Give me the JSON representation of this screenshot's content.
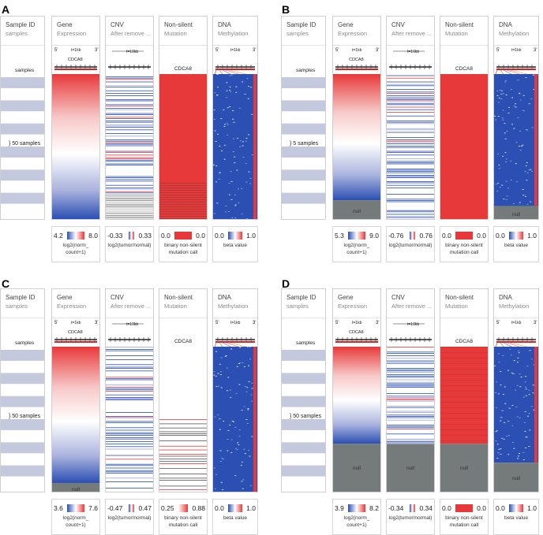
{
  "figure": {
    "panels": [
      {
        "id": "A",
        "columns": {
          "sample": {
            "title": "Sample ID",
            "subtitle": "samples",
            "samples_label": "samples",
            "bracket_label": "50 samples"
          },
          "gene": {
            "title": "Gene",
            "subtitle": "Expression",
            "gene_name": "CDCA8",
            "scale_label": "t=1kb",
            "five_prime": "5'",
            "three_prime": "3'"
          },
          "cnv": {
            "title": "CNV",
            "subtitle": "After remove ...",
            "scale_label": "t=10kb"
          },
          "mutation": {
            "title": "Non-silent",
            "subtitle": "Mutation",
            "gene_name": "CDCA8"
          },
          "methylation": {
            "title": "DNA",
            "subtitle": "Methylation",
            "scale_label": "t=1kb",
            "five_prime": "5'",
            "three_prime": "3'"
          }
        },
        "null_fraction": {
          "gene": 0,
          "cnv": 0,
          "mutation": 0,
          "methylation": 0
        },
        "null_label": "",
        "mutation_mode": "red",
        "legend": [
          {
            "lo": "4.2",
            "hi": "8.0",
            "line1": "log2(norm_",
            "line2": "count+1)",
            "type": "grad"
          },
          {
            "lo": "-0.33",
            "hi": "0.33",
            "line1": "log2(tumor/normal)",
            "line2": "",
            "type": "grad"
          },
          {
            "lo": "0.0",
            "hi": "0.0",
            "line1": "binary non-silent",
            "line2": "mutation call",
            "type": "solid"
          },
          {
            "lo": "0.0",
            "hi": "1.0",
            "line1": "beta value",
            "line2": "",
            "type": "grad"
          }
        ]
      },
      {
        "id": "B",
        "columns": {
          "sample": {
            "title": "Sample ID",
            "subtitle": "samples",
            "samples_label": "samples",
            "bracket_label": "5 samples"
          },
          "gene": {
            "title": "Gene",
            "subtitle": "Expression",
            "gene_name": "CDCA8",
            "scale_label": "t=1kb",
            "five_prime": "5'",
            "three_prime": "3'"
          },
          "cnv": {
            "title": "CNV",
            "subtitle": "After remove ...",
            "scale_label": "t=10kb"
          },
          "mutation": {
            "title": "Non-silent",
            "subtitle": "Mutation",
            "gene_name": "CDCA8"
          },
          "methylation": {
            "title": "DNA",
            "subtitle": "Methylation",
            "scale_label": "t=1kb",
            "five_prime": "5'",
            "three_prime": "3'"
          }
        },
        "null_fraction": {
          "gene": 0.13,
          "cnv": 0,
          "mutation": 0,
          "methylation": 0.09
        },
        "null_label": "null",
        "mutation_mode": "red",
        "legend": [
          {
            "lo": "5.3",
            "hi": "9.0",
            "line1": "log2(norm_",
            "line2": "count+1)",
            "type": "grad"
          },
          {
            "lo": "-0.76",
            "hi": "0.76",
            "line1": "log2(tumor/normal)",
            "line2": "",
            "type": "grad"
          },
          {
            "lo": "0.0",
            "hi": "0.0",
            "line1": "binary non-silent",
            "line2": "mutation call",
            "type": "solid"
          },
          {
            "lo": "0.0",
            "hi": "1.0",
            "line1": "beta value",
            "line2": "",
            "type": "grad"
          }
        ]
      },
      {
        "id": "C",
        "columns": {
          "sample": {
            "title": "Sample ID",
            "subtitle": "samples",
            "samples_label": "samples",
            "bracket_label": "50 samples"
          },
          "gene": {
            "title": "Gene",
            "subtitle": "Expression",
            "gene_name": "CDCA8",
            "scale_label": "t=1kb",
            "five_prime": "5'",
            "three_prime": "3'"
          },
          "cnv": {
            "title": "CNV",
            "subtitle": "After remove ...",
            "scale_label": "t=10kb"
          },
          "mutation": {
            "title": "Non-silent",
            "subtitle": "Mutation",
            "gene_name": "CDCA8"
          },
          "methylation": {
            "title": "DNA",
            "subtitle": "Methylation",
            "scale_label": "t=1kb",
            "five_prime": "5'",
            "three_prime": "3'"
          }
        },
        "null_fraction": {
          "gene": 0.06,
          "cnv": 0,
          "mutation": 0,
          "methylation": 0
        },
        "null_label": "null",
        "mutation_mode": "white",
        "legend": [
          {
            "lo": "3.6",
            "hi": "7.6",
            "line1": "log2(norm_",
            "line2": "count+1)",
            "type": "grad"
          },
          {
            "lo": "-0.47",
            "hi": "0.47",
            "line1": "log2(tumor/normal)",
            "line2": "",
            "type": "grad"
          },
          {
            "lo": "0.25",
            "hi": "0.88",
            "line1": "binary non-silent",
            "line2": "mutation call",
            "type": "gradred"
          },
          {
            "lo": "0.0",
            "hi": "1.0",
            "line1": "beta value",
            "line2": "",
            "type": "grad"
          }
        ]
      },
      {
        "id": "D",
        "columns": {
          "sample": {
            "title": "Sample ID",
            "subtitle": "samples",
            "samples_label": "samples",
            "bracket_label": "50 samples"
          },
          "gene": {
            "title": "Gene",
            "subtitle": "Expression",
            "gene_name": "CDCA8",
            "scale_label": "t=1kb",
            "five_prime": "5'",
            "three_prime": "3'"
          },
          "cnv": {
            "title": "CNV",
            "subtitle": "After remove ...",
            "scale_label": "t=10kb"
          },
          "mutation": {
            "title": "Non-silent",
            "subtitle": "Mutation",
            "gene_name": "CDCA8"
          },
          "methylation": {
            "title": "DNA",
            "subtitle": "Methylation",
            "scale_label": "t=1kb",
            "five_prime": "5'",
            "three_prime": "3'"
          }
        },
        "null_fraction": {
          "gene": 0.33,
          "cnv": 0.33,
          "mutation": 0.33,
          "methylation": 0.2
        },
        "null_label": "null",
        "mutation_mode": "red",
        "legend": [
          {
            "lo": "3.9",
            "hi": "8.2",
            "line1": "log2(norm_",
            "line2": "count+1)",
            "type": "grad"
          },
          {
            "lo": "-0.34",
            "hi": "0.34",
            "line1": "log2(tumor/normal)",
            "line2": "",
            "type": "grad"
          },
          {
            "lo": "0.0",
            "hi": "0.0",
            "line1": "binary non-silent",
            "line2": "mutation call",
            "type": "solid"
          },
          {
            "lo": "0.0",
            "hi": "1.0",
            "line1": "beta value",
            "line2": "",
            "type": "grad"
          }
        ]
      }
    ]
  },
  "colors": {
    "red": "#e8393a",
    "blue": "#2b4fb3",
    "gray": "#757a7a",
    "stripe": "#c5c9de"
  }
}
